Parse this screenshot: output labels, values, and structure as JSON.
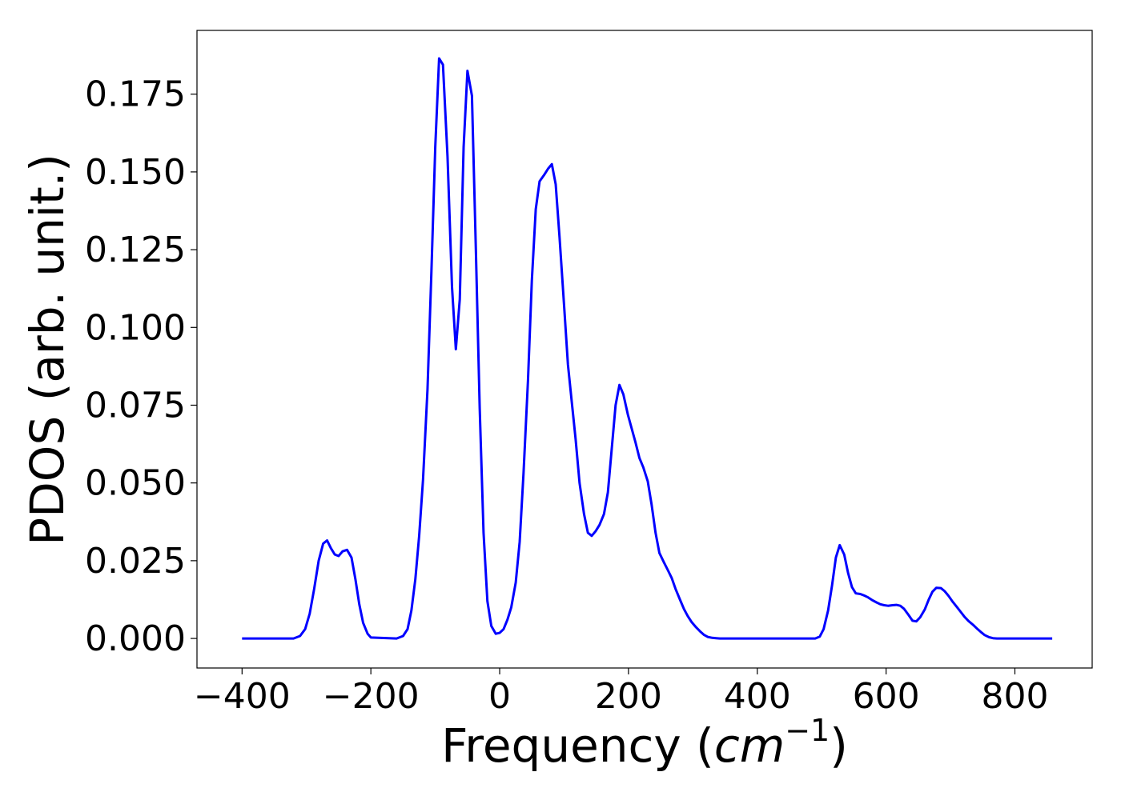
{
  "chart_data": {
    "type": "line",
    "title": "",
    "xlabel": "Frequency (",
    "xlabel_unit": "cm",
    "xlabel_unit_exponent": "−1",
    "xlabel_close": ")",
    "ylabel": "PDOS (arb. unit.)",
    "xlim": [
      -470,
      920
    ],
    "ylim": [
      -0.0095,
      0.1955
    ],
    "grid": false,
    "line_color": "#0000ff",
    "x_ticks": [
      {
        "value": -400,
        "label": "−400"
      },
      {
        "value": -200,
        "label": "−200"
      },
      {
        "value": 0,
        "label": "0"
      },
      {
        "value": 200,
        "label": "200"
      },
      {
        "value": 400,
        "label": "400"
      },
      {
        "value": 600,
        "label": "600"
      },
      {
        "value": 800,
        "label": "800"
      }
    ],
    "y_ticks": [
      {
        "value": 0.0,
        "label": "0.000"
      },
      {
        "value": 0.025,
        "label": "0.025"
      },
      {
        "value": 0.05,
        "label": "0.050"
      },
      {
        "value": 0.075,
        "label": "0.075"
      },
      {
        "value": 0.1,
        "label": "0.100"
      },
      {
        "value": 0.125,
        "label": "0.125"
      },
      {
        "value": 0.15,
        "label": "0.150"
      },
      {
        "value": 0.175,
        "label": "0.175"
      }
    ],
    "series": [
      {
        "x": [
          -400,
          -320,
          -310,
          -302,
          -295,
          -288,
          -281,
          -274,
          -268,
          -262,
          -256,
          -250,
          -244,
          -237,
          -230,
          -224,
          -218,
          -212,
          -205,
          -200,
          -160,
          -150,
          -143,
          -137,
          -131,
          -125,
          -119,
          -112,
          -106,
          -100,
          -94,
          -88,
          -81,
          -74,
          -68,
          -62,
          -56,
          -50,
          -43,
          -37,
          -31,
          -25,
          -19,
          -13,
          -6,
          0,
          6,
          12,
          18,
          25,
          31,
          37,
          44,
          50,
          56,
          62,
          69,
          75,
          81,
          87,
          93,
          100,
          106,
          112,
          118,
          124,
          131,
          137,
          143,
          149,
          155,
          162,
          168,
          174,
          180,
          186,
          192,
          199,
          205,
          211,
          217,
          223,
          230,
          236,
          242,
          248,
          255,
          261,
          267,
          273,
          280,
          286,
          292,
          298,
          305,
          311,
          317,
          323,
          330,
          336,
          342,
          350,
          420,
          490,
          497,
          503,
          510,
          516,
          522,
          528,
          535,
          541,
          547,
          553,
          560,
          566,
          572,
          578,
          585,
          591,
          597,
          603,
          610,
          616,
          622,
          628,
          635,
          641,
          647,
          653,
          660,
          666,
          672,
          678,
          685,
          691,
          697,
          703,
          710,
          716,
          722,
          728,
          735,
          741,
          747,
          753,
          760,
          766,
          772,
          800,
          858
        ],
        "y": [
          0.0,
          0.0,
          0.0008,
          0.003,
          0.008,
          0.016,
          0.025,
          0.0305,
          0.0315,
          0.029,
          0.027,
          0.0265,
          0.028,
          0.0285,
          0.026,
          0.019,
          0.011,
          0.005,
          0.0015,
          0.0003,
          0.0,
          0.0008,
          0.003,
          0.009,
          0.019,
          0.033,
          0.051,
          0.08,
          0.118,
          0.158,
          0.1865,
          0.1845,
          0.155,
          0.113,
          0.093,
          0.109,
          0.158,
          0.1825,
          0.1745,
          0.125,
          0.074,
          0.034,
          0.012,
          0.004,
          0.0015,
          0.0018,
          0.003,
          0.006,
          0.01,
          0.018,
          0.031,
          0.053,
          0.083,
          0.115,
          0.138,
          0.147,
          0.149,
          0.151,
          0.1525,
          0.146,
          0.129,
          0.107,
          0.088,
          0.076,
          0.064,
          0.05,
          0.04,
          0.034,
          0.033,
          0.0345,
          0.0365,
          0.04,
          0.047,
          0.061,
          0.075,
          0.0815,
          0.0785,
          0.072,
          0.0675,
          0.063,
          0.058,
          0.055,
          0.0505,
          0.043,
          0.034,
          0.0275,
          0.0245,
          0.022,
          0.0195,
          0.016,
          0.0125,
          0.0095,
          0.0072,
          0.0053,
          0.0036,
          0.0023,
          0.0012,
          0.0005,
          0.0002,
          0.0001,
          0.0,
          0.0,
          0.0,
          0.0,
          0.0006,
          0.003,
          0.009,
          0.017,
          0.026,
          0.03,
          0.027,
          0.021,
          0.0165,
          0.0145,
          0.0143,
          0.0138,
          0.0132,
          0.0124,
          0.0116,
          0.011,
          0.0107,
          0.0105,
          0.0107,
          0.0108,
          0.0105,
          0.0095,
          0.0075,
          0.0057,
          0.0055,
          0.0068,
          0.0093,
          0.0124,
          0.015,
          0.0163,
          0.0162,
          0.0152,
          0.0137,
          0.0119,
          0.0101,
          0.0085,
          0.0069,
          0.0056,
          0.0044,
          0.0032,
          0.0021,
          0.0011,
          0.0004,
          0.0001,
          0.0,
          0.0,
          0.0
        ]
      }
    ]
  }
}
